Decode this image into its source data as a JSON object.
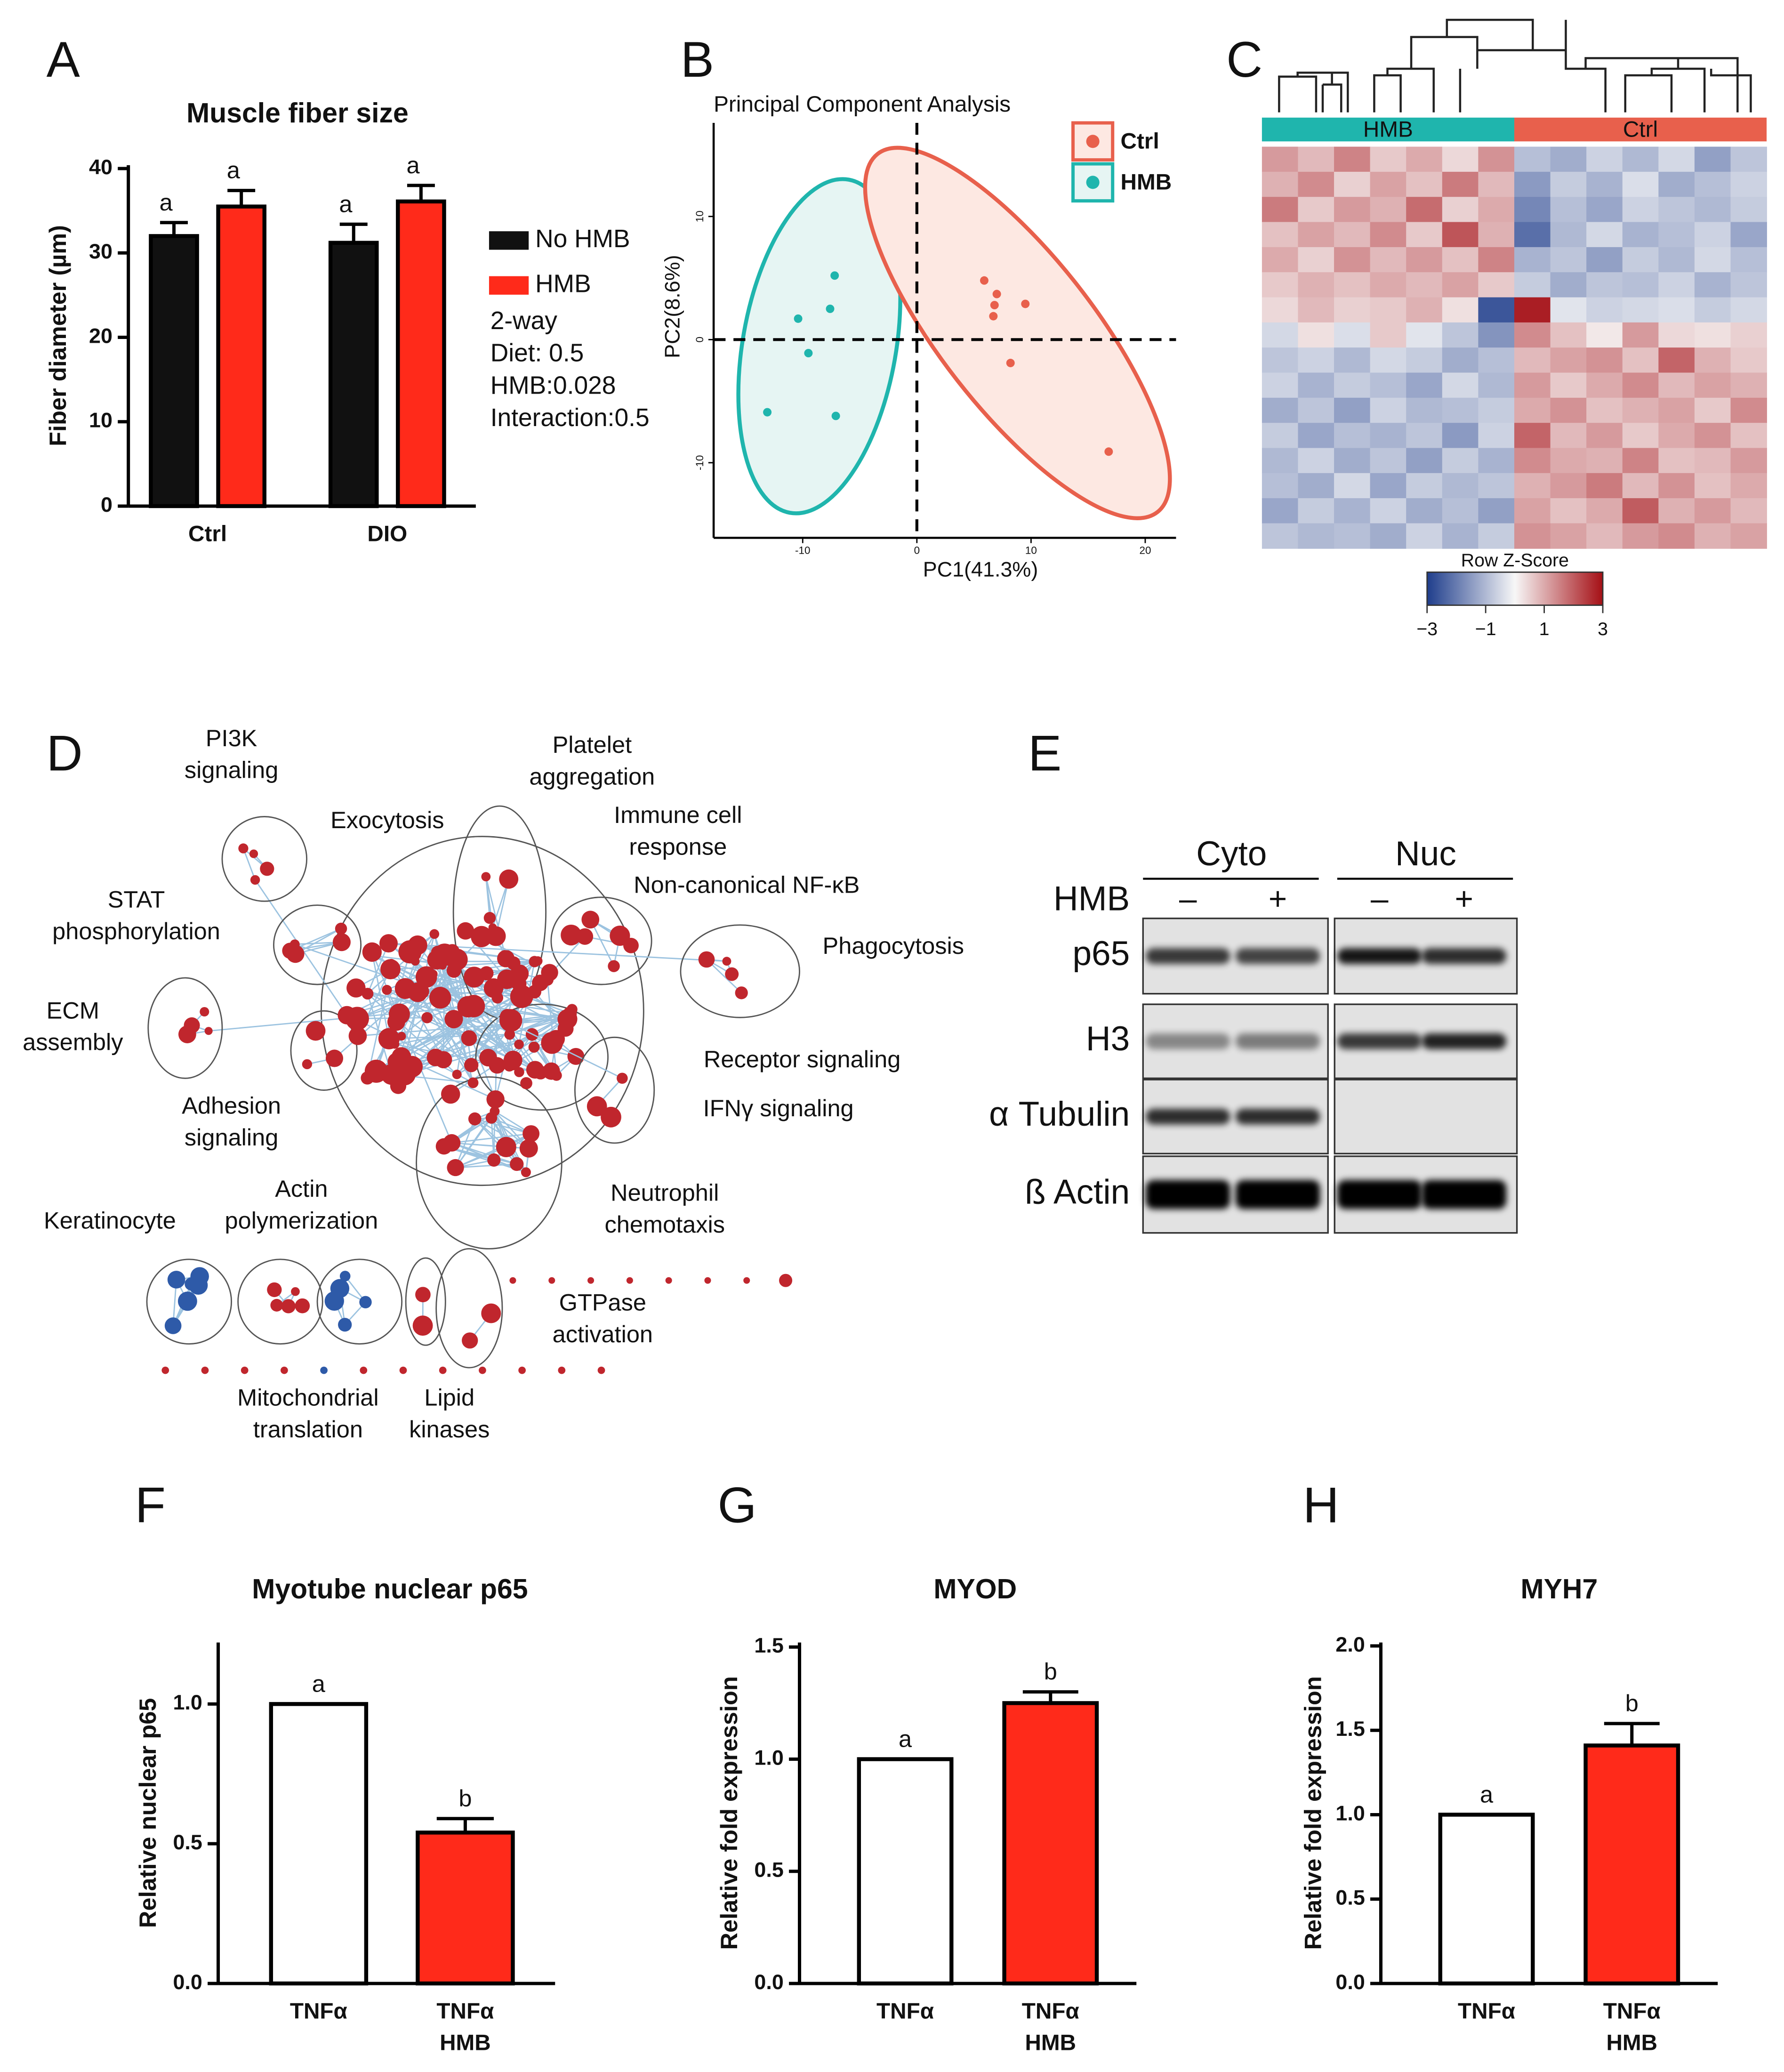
{
  "panel_labels": [
    "A",
    "B",
    "C",
    "D",
    "E",
    "F",
    "G",
    "H"
  ],
  "chart_data": [
    {
      "type": "bar",
      "title": "Muscle fiber size",
      "ylabel": "Fiber diameter (µm)",
      "categories": [
        [
          "Ctrl"
        ],
        [
          "DIO"
        ]
      ],
      "series": [
        {
          "name": "No HMB",
          "color": "#111111",
          "values": [
            32.0,
            31.2
          ],
          "errors": [
            1.6,
            2.2
          ],
          "letters": [
            "a",
            "a"
          ]
        },
        {
          "name": "HMB",
          "color": "#ff2a1a",
          "values": [
            35.5,
            36.1
          ],
          "errors": [
            1.9,
            1.9
          ],
          "letters": [
            "a",
            "a"
          ]
        }
      ],
      "ylim": [
        0,
        40.4
      ],
      "yticks": [
        0,
        10,
        20,
        30,
        40
      ],
      "annotations": [
        "2-way",
        "Diet: 0.5",
        "HMB:0.028",
        "Interaction:0.5"
      ]
    },
    {
      "type": "scatter",
      "title": "Principal Component Analysis",
      "xlabel": "PC1(41.3%)",
      "ylabel": "PC2(8.6%)",
      "xlim": [
        -17.8,
        22.7
      ],
      "ylim": [
        -16.1,
        17.6
      ],
      "xticks": [
        -10,
        0,
        10,
        20
      ],
      "yticks": [
        -10,
        0,
        10
      ],
      "hlines": [
        0
      ],
      "vlines": [
        0
      ],
      "series": [
        {
          "name": "Ctrl",
          "color": "#e8604c",
          "x": [
            5.9,
            7.0,
            6.8,
            6.7,
            9.5,
            8.2,
            16.8
          ],
          "y": [
            4.8,
            3.7,
            2.8,
            1.9,
            2.9,
            -1.9,
            -9.1
          ]
        },
        {
          "name": "HMB",
          "color": "#1fb5ad",
          "x": [
            -7.2,
            -7.6,
            -10.4,
            -9.5,
            -13.1,
            -7.1
          ],
          "y": [
            5.2,
            2.5,
            1.7,
            -1.1,
            -5.9,
            -6.2
          ]
        }
      ]
    },
    {
      "type": "heatmap",
      "groups": [
        {
          "name": "HMB",
          "color": "#1fb5ad",
          "columns": 7
        },
        {
          "name": "Ctrl",
          "color": "#e8604c",
          "columns": 7
        }
      ],
      "colorbar_title": "Row Z-Score",
      "zlim": [
        -3,
        3
      ],
      "zticks": [
        {
          "value": -3,
          "label": "−3"
        },
        {
          "value": -1,
          "label": "−1"
        },
        1,
        3
      ],
      "colorscale": [
        "#1f3d8c",
        "#f7f7f7",
        "#a50f15"
      ],
      "values": [
        [
          1.2,
          0.8,
          1.5,
          0.6,
          1.0,
          0.4,
          1.3,
          -0.9,
          -1.2,
          -0.6,
          -1.0,
          -0.5,
          -1.4,
          -0.8
        ],
        [
          0.9,
          1.4,
          0.5,
          1.1,
          0.7,
          1.6,
          0.8,
          -1.5,
          -0.7,
          -1.1,
          -0.4,
          -1.2,
          -0.9,
          -0.6
        ],
        [
          1.6,
          0.6,
          1.2,
          0.9,
          1.8,
          0.5,
          1.0,
          -1.8,
          -0.9,
          -1.3,
          -0.6,
          -0.8,
          -1.0,
          -0.7
        ],
        [
          0.7,
          1.1,
          0.8,
          1.4,
          0.6,
          2.1,
          0.9,
          -2.2,
          -1.0,
          -0.5,
          -1.1,
          -0.9,
          -0.6,
          -1.3
        ],
        [
          1.0,
          0.5,
          1.3,
          0.8,
          1.2,
          0.7,
          1.5,
          -1.1,
          -0.8,
          -1.4,
          -0.7,
          -1.0,
          -0.5,
          -0.9
        ],
        [
          0.6,
          0.9,
          0.7,
          1.0,
          0.8,
          1.1,
          0.6,
          -0.7,
          -1.2,
          -0.8,
          -0.9,
          -0.6,
          -1.1,
          -0.8
        ],
        [
          0.4,
          0.8,
          0.5,
          0.6,
          0.9,
          0.3,
          -2.6,
          2.8,
          -0.3,
          -0.6,
          -0.5,
          -0.4,
          -0.7,
          -0.5
        ],
        [
          -0.5,
          0.3,
          -0.4,
          0.6,
          -0.3,
          -0.8,
          -1.6,
          1.4,
          0.7,
          0.2,
          1.2,
          0.4,
          0.3,
          0.5
        ],
        [
          -0.8,
          -0.6,
          -1.0,
          -0.5,
          -0.7,
          -1.2,
          -0.9,
          0.8,
          1.1,
          1.3,
          0.7,
          1.9,
          0.9,
          0.6
        ],
        [
          -0.6,
          -1.1,
          -0.7,
          -0.9,
          -1.3,
          -0.5,
          -1.0,
          1.2,
          0.6,
          1.0,
          1.4,
          0.8,
          1.1,
          0.9
        ],
        [
          -1.2,
          -0.8,
          -1.4,
          -0.6,
          -1.0,
          -0.9,
          -0.7,
          1.0,
          1.3,
          0.7,
          0.9,
          1.1,
          0.6,
          1.4
        ],
        [
          -0.7,
          -1.3,
          -0.9,
          -1.1,
          -0.8,
          -1.5,
          -0.6,
          1.9,
          0.8,
          1.2,
          0.6,
          1.0,
          1.3,
          0.7
        ],
        [
          -1.0,
          -0.6,
          -1.2,
          -0.8,
          -1.4,
          -0.7,
          -1.1,
          1.4,
          1.0,
          0.9,
          1.5,
          0.7,
          0.8,
          1.2
        ],
        [
          -0.9,
          -1.2,
          -0.5,
          -1.3,
          -0.7,
          -1.0,
          -0.8,
          0.9,
          1.2,
          1.6,
          0.8,
          1.3,
          0.7,
          1.0
        ],
        [
          -1.3,
          -0.7,
          -1.1,
          -0.6,
          -1.2,
          -0.9,
          -1.4,
          1.1,
          0.7,
          1.0,
          2.0,
          0.9,
          1.2,
          0.8
        ],
        [
          -0.8,
          -1.0,
          -0.9,
          -1.2,
          -0.6,
          -1.1,
          -0.7,
          1.3,
          1.1,
          0.8,
          1.2,
          1.4,
          0.9,
          1.1
        ]
      ]
    },
    {
      "type": "bar",
      "title": "Myotube nuclear p65",
      "ylabel": "Relative nuclear p65",
      "categories": [
        [
          "TNFα"
        ],
        [
          "TNFα",
          "HMB"
        ]
      ],
      "series": [
        {
          "colors": [
            "#ffffff",
            "#ff2a1a"
          ],
          "values": [
            1.0,
            0.54
          ],
          "errors": [
            0,
            0.05
          ],
          "letters": [
            "a",
            "b"
          ]
        }
      ],
      "ylim": [
        0,
        1.22
      ],
      "yticks": [
        {
          "value": 0,
          "label": "0.0"
        },
        {
          "value": 0.5,
          "label": "0.5"
        },
        {
          "value": 1,
          "label": "1.0"
        }
      ]
    },
    {
      "type": "bar",
      "title": "MYOD",
      "ylabel": "Relative fold expression",
      "categories": [
        [
          "TNFα"
        ],
        [
          "TNFα",
          "HMB"
        ]
      ],
      "series": [
        {
          "colors": [
            "#ffffff",
            "#ff2a1a"
          ],
          "values": [
            1.0,
            1.25
          ],
          "errors": [
            0,
            0.05
          ],
          "letters": [
            "a",
            "b"
          ]
        }
      ],
      "ylim": [
        0,
        1.52
      ],
      "yticks": [
        {
          "value": 0,
          "label": "0.0"
        },
        {
          "value": 0.5,
          "label": "0.5"
        },
        {
          "value": 1,
          "label": "1.0"
        },
        {
          "value": 1.5,
          "label": "1.5"
        }
      ]
    },
    {
      "type": "bar",
      "title": "MYH7",
      "ylabel": "Relative fold expression",
      "categories": [
        [
          "TNFα"
        ],
        [
          "TNFα",
          "HMB"
        ]
      ],
      "series": [
        {
          "colors": [
            "#ffffff",
            "#ff2a1a"
          ],
          "values": [
            1.0,
            1.41
          ],
          "errors": [
            0,
            0.13
          ],
          "letters": [
            "a",
            "b"
          ]
        }
      ],
      "ylim": [
        0,
        2.02
      ],
      "yticks": [
        {
          "value": 0,
          "label": "0.0"
        },
        {
          "value": 0.5,
          "label": "0.5"
        },
        {
          "value": 1,
          "label": "1.0"
        },
        {
          "value": 1.5,
          "label": "1.5"
        },
        {
          "value": 2,
          "label": "2.0"
        }
      ]
    }
  ],
  "network": {
    "labels": [
      [
        "PI3K",
        "signaling"
      ],
      [
        "Platelet",
        "aggregation"
      ],
      [
        "Exocytosis"
      ],
      [
        "Immune cell",
        "response"
      ],
      [
        "Non-canonical NF-κB"
      ],
      [
        "STAT",
        "phosphorylation"
      ],
      [
        "Phagocytosis"
      ],
      [
        "ECM",
        "assembly"
      ],
      [
        "Receptor signaling"
      ],
      [
        "Adhesion",
        "signaling"
      ],
      [
        "IFNγ signaling"
      ],
      [
        "Actin",
        "polymerization"
      ],
      [
        "Neutrophil",
        "chemotaxis"
      ],
      [
        "Keratinocyte"
      ],
      [
        "GTPase",
        "activation"
      ],
      [
        "Mitochondrial",
        "translation"
      ],
      [
        "Lipid",
        "kinases"
      ]
    ]
  },
  "blot": {
    "groups": [
      "Cyto",
      "Nuc"
    ],
    "treatment": "HMB",
    "lanes": [
      "–",
      "+",
      "–",
      "+"
    ],
    "rows": [
      "p65",
      "H3",
      "α Tubulin",
      "ß Actin"
    ]
  }
}
